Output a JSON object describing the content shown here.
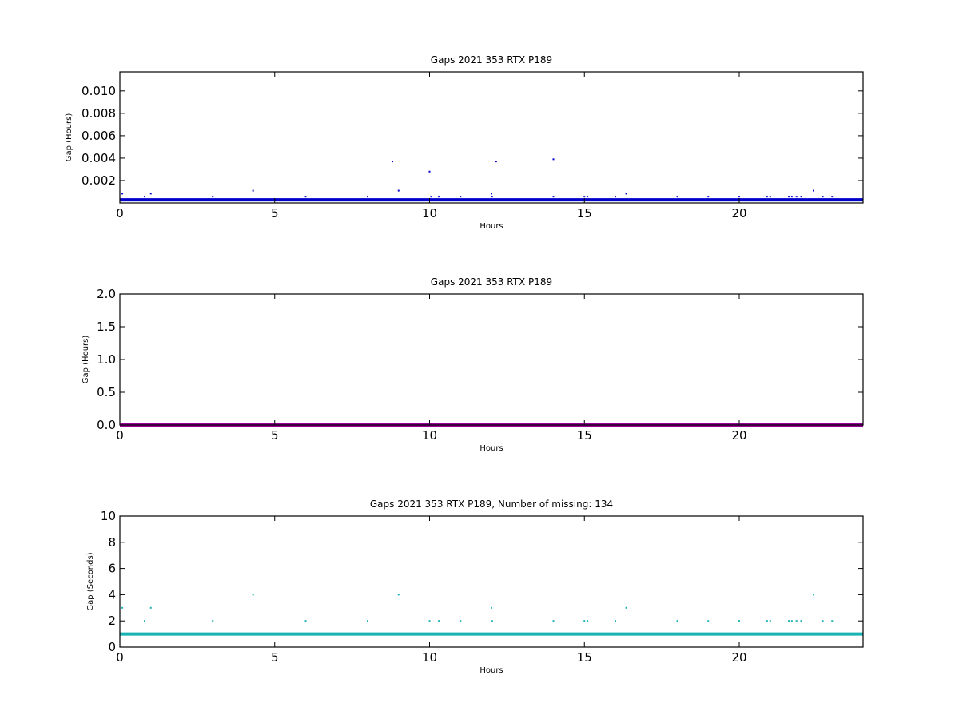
{
  "chart_data": [
    {
      "type": "scatter",
      "title": "Gaps 2021 353 RTX  P189",
      "xlabel": "Hours",
      "ylabel": "Gap (Hours)",
      "xlim": [
        0,
        24
      ],
      "ylim": [
        0,
        0.0117
      ],
      "x_ticks": [
        0,
        5,
        10,
        15,
        20
      ],
      "x_tick_labels": [
        "0",
        "5",
        "10",
        "15",
        "20"
      ],
      "y_ticks": [
        0.002,
        0.004,
        0.006,
        0.008,
        0.01
      ],
      "y_tick_labels": [
        "0.002",
        "0.004",
        "0.006",
        "0.008",
        "0.010"
      ],
      "grid": false,
      "color": "#0000cc",
      "baseline": {
        "y": 0.00028,
        "x_range": [
          0,
          24
        ]
      },
      "points": [
        [
          0.08,
          0.00083
        ],
        [
          0.8,
          0.00056
        ],
        [
          1.0,
          0.00083
        ],
        [
          3.0,
          0.00056
        ],
        [
          4.3,
          0.0011
        ],
        [
          6.0,
          0.00056
        ],
        [
          8.0,
          0.00056
        ],
        [
          8.8,
          0.0037
        ],
        [
          9.0,
          0.0011
        ],
        [
          10.0,
          0.0028
        ],
        [
          10.05,
          0.00056
        ],
        [
          10.3,
          0.00056
        ],
        [
          11.0,
          0.00056
        ],
        [
          12.0,
          0.00083
        ],
        [
          12.02,
          0.00056
        ],
        [
          12.15,
          0.0037
        ],
        [
          14.0,
          0.0039
        ],
        [
          14.0,
          0.00056
        ],
        [
          15.0,
          0.00056
        ],
        [
          15.1,
          0.00056
        ],
        [
          16.0,
          0.00056
        ],
        [
          16.35,
          0.00083
        ],
        [
          18.0,
          0.00056
        ],
        [
          19.0,
          0.00056
        ],
        [
          20.0,
          0.00056
        ],
        [
          20.9,
          0.00056
        ],
        [
          21.0,
          0.00056
        ],
        [
          21.6,
          0.00056
        ],
        [
          21.7,
          0.00056
        ],
        [
          21.85,
          0.00056
        ],
        [
          22.0,
          0.00056
        ],
        [
          22.4,
          0.0011
        ],
        [
          22.7,
          0.00056
        ],
        [
          23.0,
          0.00056
        ]
      ]
    },
    {
      "type": "scatter",
      "title": "Gaps 2021 353 RTX  P189",
      "xlabel": "Hours",
      "ylabel": "Gap (Hours)",
      "xlim": [
        0,
        24
      ],
      "ylim": [
        0,
        2.0
      ],
      "x_ticks": [
        0,
        5,
        10,
        15,
        20
      ],
      "x_tick_labels": [
        "0",
        "5",
        "10",
        "15",
        "20"
      ],
      "y_ticks": [
        0.0,
        0.5,
        1.0,
        1.5,
        2.0
      ],
      "y_tick_labels": [
        "0.0",
        "0.5",
        "1.0",
        "1.5",
        "2.0"
      ],
      "grid": false,
      "color": "#990099",
      "baseline": {
        "y": 0.0,
        "x_range": [
          0,
          24
        ]
      },
      "points": []
    },
    {
      "type": "scatter",
      "title": "Gaps 2021 353 RTX  P189, Number of missing: 134",
      "xlabel": "Hours",
      "ylabel": "Gap (Seconds)",
      "xlim": [
        0,
        24
      ],
      "ylim": [
        0,
        10
      ],
      "x_ticks": [
        0,
        5,
        10,
        15,
        20
      ],
      "x_tick_labels": [
        "0",
        "5",
        "10",
        "15",
        "20"
      ],
      "y_ticks": [
        0,
        2,
        4,
        6,
        8,
        10
      ],
      "y_tick_labels": [
        "0",
        "2",
        "4",
        "6",
        "8",
        "10"
      ],
      "grid": false,
      "color": "#1ab3b3",
      "baseline": {
        "y": 1.0,
        "x_range": [
          0,
          24
        ]
      },
      "points": [
        [
          0.08,
          3
        ],
        [
          0.8,
          2
        ],
        [
          1.0,
          3
        ],
        [
          3.0,
          2
        ],
        [
          4.3,
          4
        ],
        [
          6.0,
          2
        ],
        [
          8.0,
          2
        ],
        [
          9.0,
          4
        ],
        [
          10.0,
          2
        ],
        [
          10.3,
          2
        ],
        [
          11.0,
          2
        ],
        [
          12.0,
          3
        ],
        [
          12.02,
          2
        ],
        [
          14.0,
          2
        ],
        [
          15.0,
          2
        ],
        [
          15.1,
          2
        ],
        [
          16.0,
          2
        ],
        [
          16.35,
          3
        ],
        [
          18.0,
          2
        ],
        [
          19.0,
          2
        ],
        [
          20.0,
          2
        ],
        [
          20.9,
          2
        ],
        [
          21.0,
          2
        ],
        [
          21.6,
          2
        ],
        [
          21.7,
          2
        ],
        [
          21.85,
          2
        ],
        [
          22.0,
          2
        ],
        [
          22.4,
          4
        ],
        [
          22.7,
          2
        ],
        [
          23.0,
          2
        ]
      ]
    }
  ]
}
